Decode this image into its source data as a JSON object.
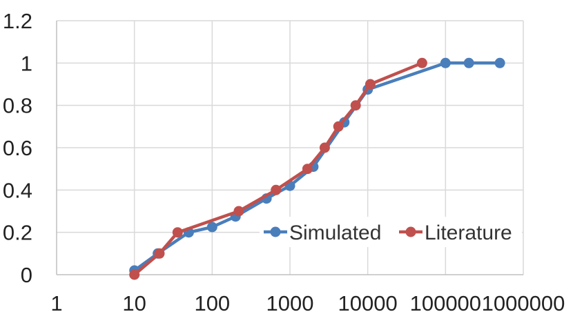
{
  "chart_data": {
    "type": "scatter",
    "x_scale": "log",
    "xlim": [
      1,
      1000000
    ],
    "ylim": [
      0,
      1.2
    ],
    "x_ticks": [
      "1",
      "10",
      "100",
      "1000",
      "10000",
      "100000",
      "1000000"
    ],
    "y_ticks": [
      "0",
      "0.2",
      "0.4",
      "0.6",
      "0.8",
      "1",
      "1.2"
    ],
    "grid": "vertical-and-horizontal",
    "legend_position": "right-inside-lower",
    "series": [
      {
        "name": "Simulated",
        "color": "#4a7ebb",
        "x": [
          10,
          20,
          50,
          100,
          200,
          500,
          1000,
          2000,
          5000,
          10000,
          100000,
          200000,
          500000
        ],
        "y": [
          0.02,
          0.1,
          0.2,
          0.225,
          0.275,
          0.36,
          0.42,
          0.51,
          0.72,
          0.875,
          1.0,
          1.0,
          1.0
        ]
      },
      {
        "name": "Literature",
        "color": "#c0504d",
        "x": [
          10,
          21,
          36,
          220,
          660,
          1680,
          2800,
          4200,
          7000,
          10800,
          50000
        ],
        "y": [
          0.0,
          0.1,
          0.2,
          0.3,
          0.4,
          0.5,
          0.6,
          0.7,
          0.8,
          0.9,
          1.0
        ]
      }
    ]
  }
}
